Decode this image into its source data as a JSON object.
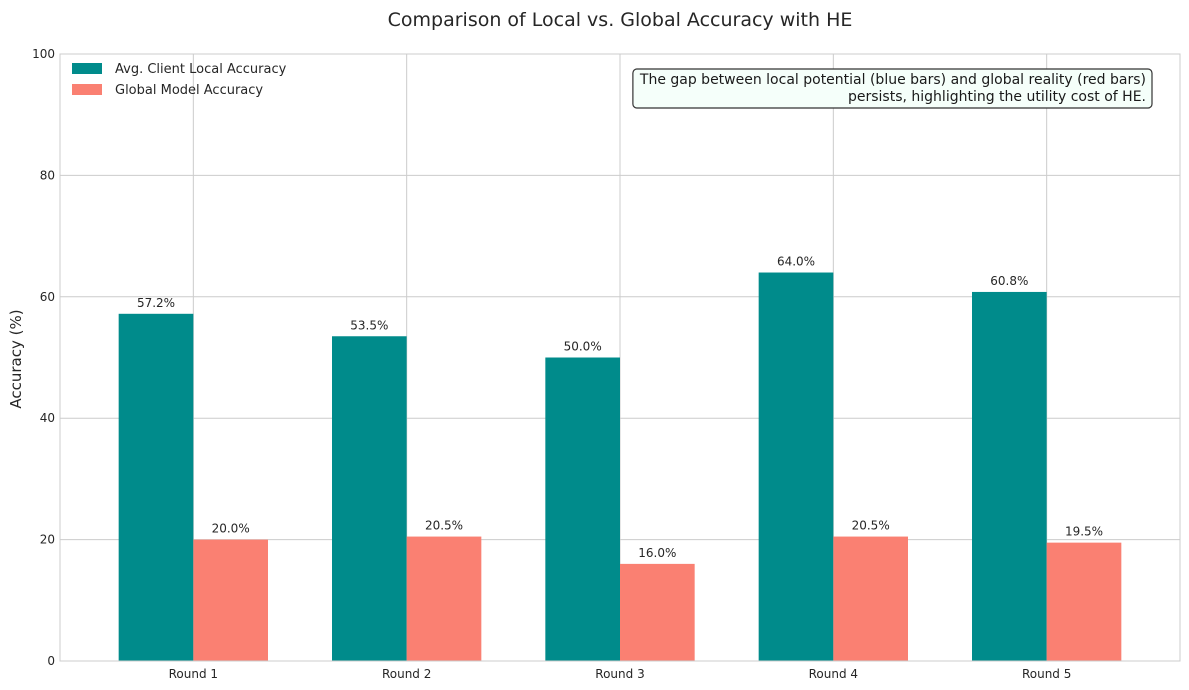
{
  "chart_data": {
    "type": "bar",
    "title": "Comparison of Local vs. Global Accuracy with HE",
    "xlabel": "",
    "ylabel": "Accuracy (%)",
    "ylim": [
      0,
      100
    ],
    "yticks": [
      0,
      20,
      40,
      60,
      80,
      100
    ],
    "categories": [
      "Round 1",
      "Round 2",
      "Round 3",
      "Round 4",
      "Round 5"
    ],
    "series": [
      {
        "name": "Avg. Client Local Accuracy",
        "color": "#008b8b",
        "values": [
          57.2,
          53.5,
          50.0,
          64.0,
          60.8
        ],
        "labels": [
          "57.2%",
          "53.5%",
          "50.0%",
          "64.0%",
          "60.8%"
        ]
      },
      {
        "name": "Global Model Accuracy",
        "color": "#fa8072",
        "values": [
          20.0,
          20.5,
          16.0,
          20.5,
          19.5
        ],
        "labels": [
          "20.0%",
          "20.5%",
          "16.0%",
          "20.5%",
          "19.5%"
        ]
      }
    ],
    "grid": true,
    "legend_position": "top-left",
    "annotation": {
      "lines": [
        "The gap between local potential (blue bars) and global reality (red bars)",
        "persists, highlighting the utility cost of HE."
      ],
      "position": "top-right",
      "background_color": "#f5fffa",
      "border_color": "#333333"
    }
  }
}
